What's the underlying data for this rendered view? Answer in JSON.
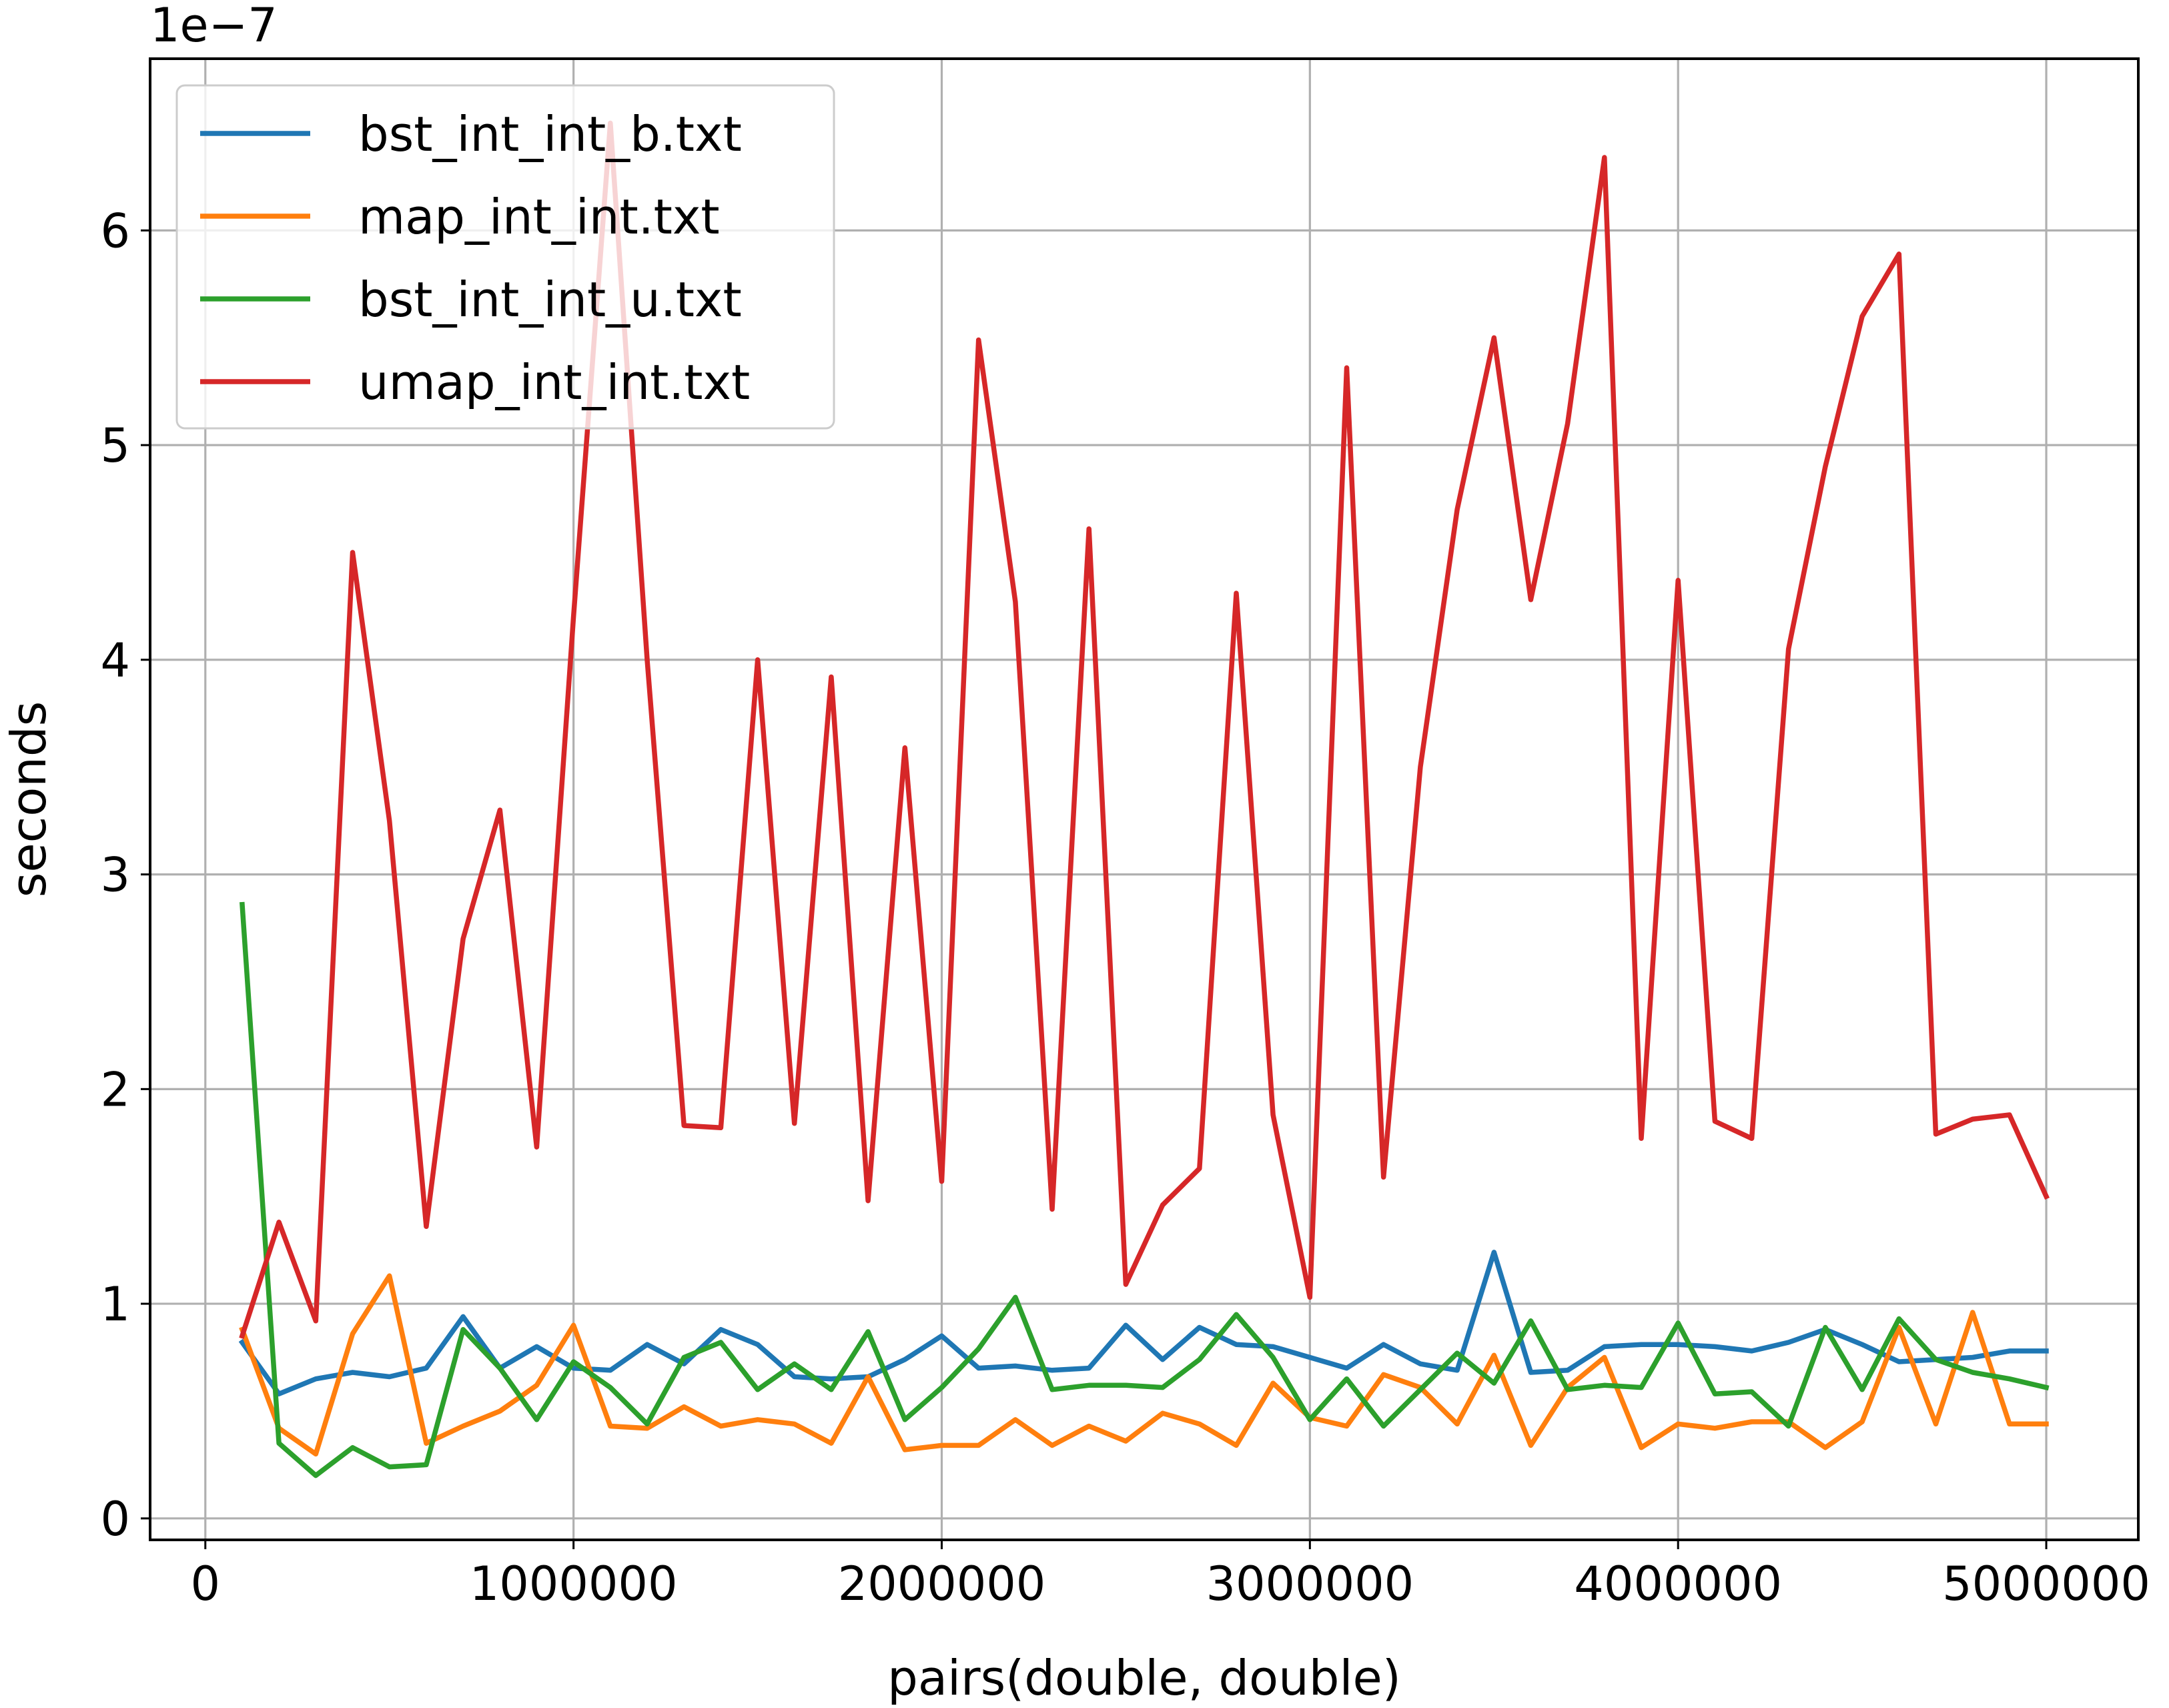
{
  "chart_data": {
    "type": "line",
    "title": "",
    "xlabel": "pairs(double, double)",
    "ylabel": "seconds",
    "y_offset_label": "1e−7",
    "xlim": [
      -150000,
      5250000
    ],
    "ylim": [
      -1e-08,
      6.8e-07
    ],
    "xticks": [
      0,
      1000000,
      2000000,
      3000000,
      4000000,
      5000000
    ],
    "xtick_labels": [
      "0",
      "1000000",
      "2000000",
      "3000000",
      "4000000",
      "5000000"
    ],
    "yticks": [
      0,
      1e-07,
      2e-07,
      3e-07,
      4e-07,
      5e-07,
      6e-07
    ],
    "ytick_labels": [
      "0",
      "1",
      "2",
      "3",
      "4",
      "5",
      "6"
    ],
    "grid": true,
    "legend_position": "top-left",
    "x": [
      100000,
      200000,
      300000,
      400000,
      500000,
      600000,
      700000,
      800000,
      900000,
      1000000,
      1100000,
      1200000,
      1300000,
      1400000,
      1500000,
      1600000,
      1700000,
      1800000,
      1900000,
      2000000,
      2100000,
      2200000,
      2300000,
      2400000,
      2500000,
      2600000,
      2700000,
      2800000,
      2900000,
      3000000,
      3100000,
      3200000,
      3300000,
      3400000,
      3500000,
      3600000,
      3700000,
      3800000,
      3900000,
      4000000,
      4100000,
      4200000,
      4300000,
      4400000,
      4500000,
      4600000,
      4700000,
      4800000,
      4900000,
      5000000
    ],
    "series": [
      {
        "name": "bst_int_int_b.txt",
        "color": "#1f77b4",
        "values": [
          8.2e-08,
          5.8e-08,
          6.5e-08,
          6.8e-08,
          6.6e-08,
          7e-08,
          9.4e-08,
          7e-08,
          8e-08,
          7e-08,
          6.9e-08,
          8.1e-08,
          7.2e-08,
          8.8e-08,
          8.1e-08,
          6.6e-08,
          6.5e-08,
          6.6e-08,
          7.4e-08,
          8.5e-08,
          7e-08,
          7.1e-08,
          6.9e-08,
          7e-08,
          9e-08,
          7.4e-08,
          8.9e-08,
          8.1e-08,
          8e-08,
          7.5e-08,
          7e-08,
          8.1e-08,
          7.2e-08,
          6.9e-08,
          1.24e-07,
          6.8e-08,
          6.9e-08,
          8e-08,
          8.1e-08,
          8.1e-08,
          8e-08,
          7.8e-08,
          8.2e-08,
          8.8e-08,
          8.1e-08,
          7.3e-08,
          7.4e-08,
          7.5e-08,
          7.8e-08,
          7.8e-08
        ]
      },
      {
        "name": "map_int_int.txt",
        "color": "#ff7f0e",
        "values": [
          8.8e-08,
          4.2e-08,
          3e-08,
          8.6e-08,
          1.13e-07,
          3.5e-08,
          4.3e-08,
          5e-08,
          6.2e-08,
          9e-08,
          4.3e-08,
          4.2e-08,
          5.2e-08,
          4.3e-08,
          4.6e-08,
          4.4e-08,
          3.5e-08,
          6.6e-08,
          3.2e-08,
          3.4e-08,
          3.4e-08,
          4.6e-08,
          3.4e-08,
          4.3e-08,
          3.6e-08,
          4.9e-08,
          4.4e-08,
          3.4e-08,
          6.3e-08,
          4.7e-08,
          4.3e-08,
          6.7e-08,
          6.1e-08,
          4.4e-08,
          7.6e-08,
          3.4e-08,
          6.1e-08,
          7.5e-08,
          3.3e-08,
          4.4e-08,
          4.2e-08,
          4.5e-08,
          4.5e-08,
          3.3e-08,
          4.5e-08,
          8.9e-08,
          4.4e-08,
          9.6e-08,
          4.4e-08,
          4.4e-08
        ]
      },
      {
        "name": "bst_int_int_u.txt",
        "color": "#2ca02c",
        "values": [
          2.86e-07,
          3.5e-08,
          2e-08,
          3.3e-08,
          2.4e-08,
          2.5e-08,
          8.8e-08,
          7e-08,
          4.6e-08,
          7.3e-08,
          6.1e-08,
          4.4e-08,
          7.5e-08,
          8.2e-08,
          6e-08,
          7.2e-08,
          6e-08,
          8.7e-08,
          4.6e-08,
          6.1e-08,
          7.9e-08,
          1.03e-07,
          6e-08,
          6.2e-08,
          6.2e-08,
          6.1e-08,
          7.4e-08,
          9.5e-08,
          7.5e-08,
          4.6e-08,
          6.5e-08,
          4.3e-08,
          6e-08,
          7.7e-08,
          6.3e-08,
          9.2e-08,
          6e-08,
          6.2e-08,
          6.1e-08,
          9.1e-08,
          5.8e-08,
          5.9e-08,
          4.3e-08,
          8.9e-08,
          6e-08,
          9.3e-08,
          7.4e-08,
          6.8e-08,
          6.5e-08,
          6.1e-08
        ]
      },
      {
        "name": "umap_int_int.txt",
        "color": "#d62728",
        "values": [
          8.5e-08,
          1.38e-07,
          9.2e-08,
          4.5e-07,
          3.25e-07,
          1.36e-07,
          2.7e-07,
          3.3e-07,
          1.73e-07,
          4.2e-07,
          6.5e-07,
          4e-07,
          1.83e-07,
          1.82e-07,
          4e-07,
          1.84e-07,
          3.92e-07,
          1.48e-07,
          3.59e-07,
          1.57e-07,
          5.49e-07,
          4.27e-07,
          1.44e-07,
          4.61e-07,
          1.09e-07,
          1.46e-07,
          1.63e-07,
          4.31e-07,
          1.88e-07,
          1.03e-07,
          5.36e-07,
          1.59e-07,
          3.5e-07,
          4.7e-07,
          5.5e-07,
          4.28e-07,
          5.1e-07,
          6.34e-07,
          1.77e-07,
          4.37e-07,
          1.85e-07,
          1.77e-07,
          4.05e-07,
          4.9e-07,
          5.6e-07,
          5.89e-07,
          1.79e-07,
          1.86e-07,
          1.88e-07,
          1.5e-07
        ]
      }
    ]
  }
}
